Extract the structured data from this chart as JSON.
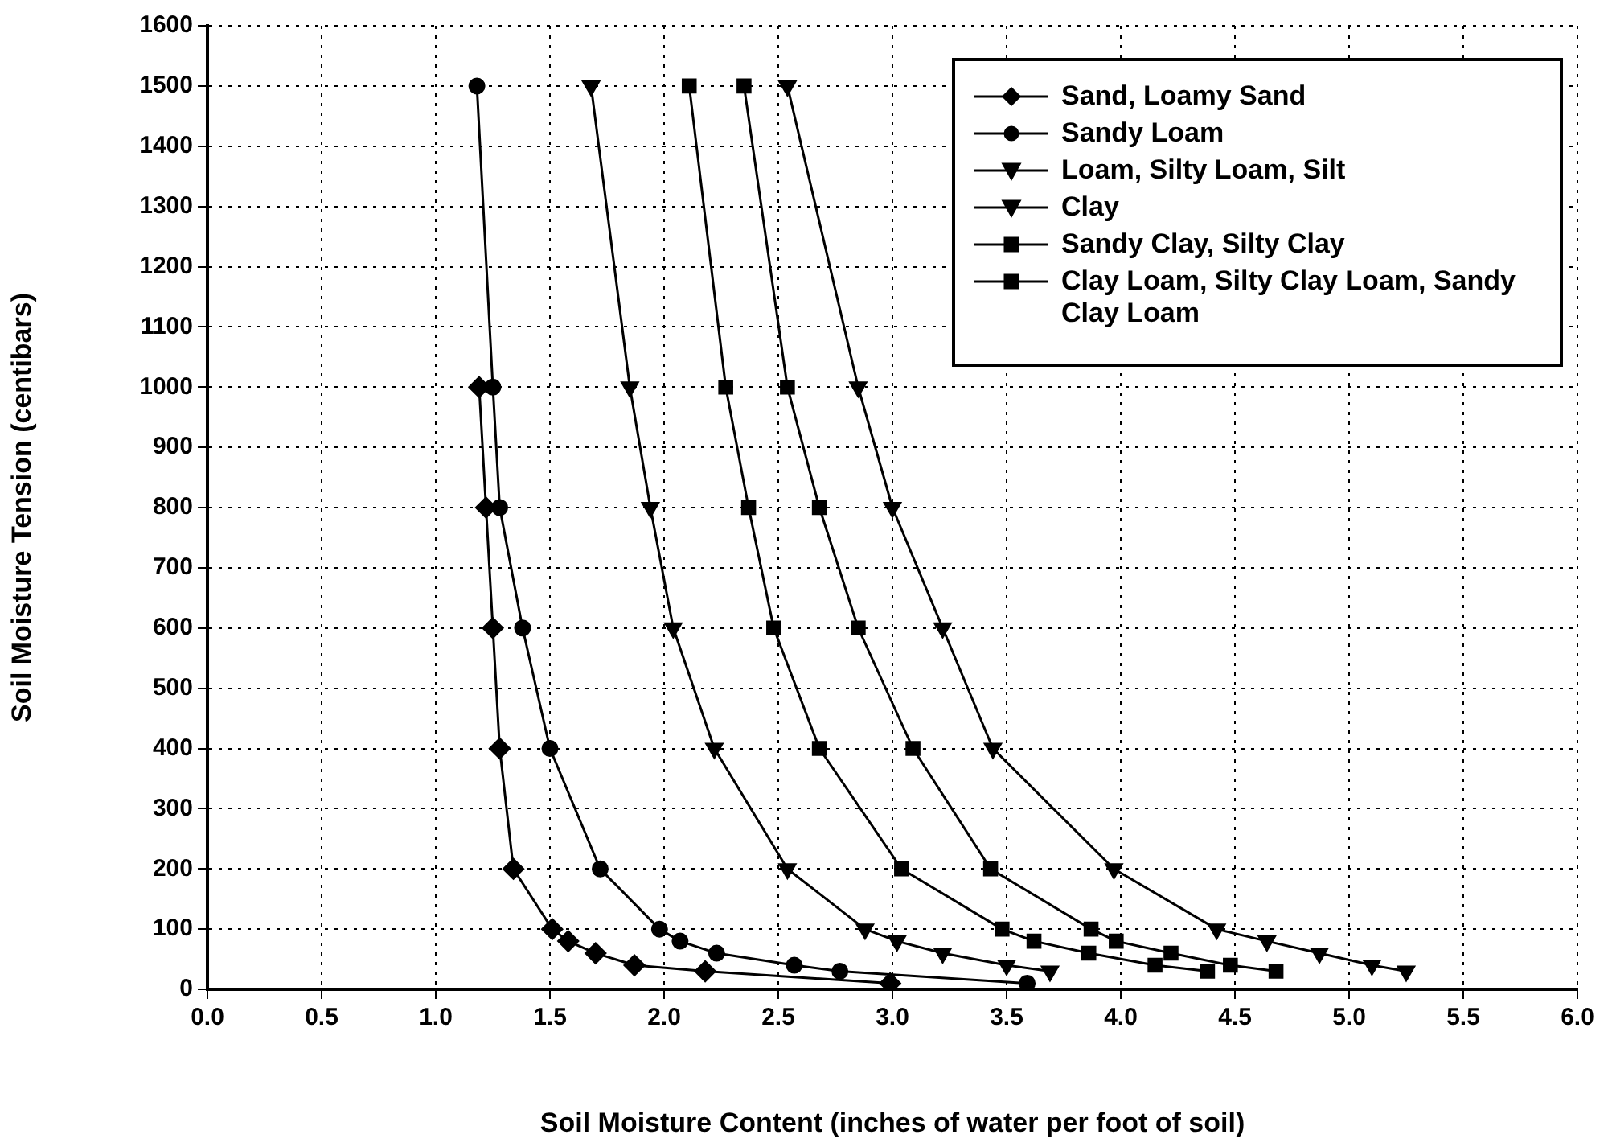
{
  "chart_data": {
    "type": "line",
    "xlabel": "Soil Moisture Content (inches of water per foot of soil)",
    "ylabel": "Soil Moisture Tension (centibars)",
    "xlim": [
      0,
      6
    ],
    "xticks": [
      {
        "value": 0,
        "label": "0.0"
      },
      {
        "value": 0.5,
        "label": "0.5"
      },
      {
        "value": 1,
        "label": "1.0"
      },
      {
        "value": 1.5,
        "label": "1.5"
      },
      {
        "value": 2,
        "label": "2.0"
      },
      {
        "value": 2.5,
        "label": "2.5"
      },
      {
        "value": 3,
        "label": "3.0"
      },
      {
        "value": 3.5,
        "label": "3.5"
      },
      {
        "value": 4,
        "label": "4.0"
      },
      {
        "value": 4.5,
        "label": "4.5"
      },
      {
        "value": 5,
        "label": "5.0"
      },
      {
        "value": 5.5,
        "label": "5.5"
      },
      {
        "value": 6,
        "label": "6.0"
      }
    ],
    "ylim": [
      0,
      1600
    ],
    "yticks": [
      0,
      100,
      200,
      300,
      400,
      500,
      600,
      700,
      800,
      900,
      1000,
      1100,
      1200,
      1300,
      1400,
      1500,
      1600
    ],
    "grid": true,
    "legend": "top right",
    "line_style": "solid",
    "series": [
      {
        "name": "Sand, Loamy Sand",
        "color": "#000000",
        "marker": "diamond",
        "x": [
          1.19,
          1.22,
          1.25,
          1.28,
          1.34,
          1.51,
          1.58,
          1.7,
          1.87,
          2.18,
          2.99
        ],
        "values": [
          1000,
          800,
          600,
          400,
          200,
          100,
          80,
          60,
          40,
          30,
          10
        ]
      },
      {
        "name": "Sandy Loam",
        "color": "#000000",
        "marker": "circle",
        "x": [
          1.18,
          1.25,
          1.28,
          1.38,
          1.5,
          1.72,
          1.98,
          2.07,
          2.23,
          2.57,
          2.77,
          3.59
        ],
        "values": [
          1500,
          1000,
          800,
          600,
          400,
          200,
          100,
          80,
          60,
          40,
          30,
          10
        ]
      },
      {
        "name": "Loam, Silty Loam, Silt",
        "color": "#000000",
        "marker": "triangle",
        "x": [
          1.68,
          1.85,
          1.94,
          2.04,
          2.22,
          2.54,
          2.88,
          3.02,
          3.22,
          3.5,
          3.69
        ],
        "values": [
          1500,
          1000,
          800,
          600,
          400,
          200,
          100,
          80,
          60,
          40,
          30
        ]
      },
      {
        "name": "Clay",
        "color": "#000000",
        "marker": "triangle",
        "x": [
          2.54,
          2.85,
          3.0,
          3.22,
          3.44,
          3.97,
          4.42,
          4.64,
          4.87,
          5.1,
          5.25
        ],
        "values": [
          1500,
          1000,
          800,
          600,
          400,
          200,
          100,
          80,
          60,
          40,
          30
        ]
      },
      {
        "name": "Sandy Clay, Silty Clay",
        "color": "#000000",
        "marker": "square",
        "x": [
          2.35,
          2.54,
          2.68,
          2.85,
          3.09,
          3.43,
          3.87,
          3.98,
          4.22,
          4.48,
          4.68
        ],
        "values": [
          1500,
          1000,
          800,
          600,
          400,
          200,
          100,
          80,
          60,
          40,
          30
        ]
      },
      {
        "name": "Clay Loam, Silty Clay Loam, Sandy Clay Loam",
        "color": "#000000",
        "marker": "square",
        "x": [
          2.11,
          2.27,
          2.37,
          2.48,
          2.68,
          3.04,
          3.48,
          3.62,
          3.86,
          4.15,
          4.38
        ],
        "values": [
          1500,
          1000,
          800,
          600,
          400,
          200,
          100,
          80,
          60,
          40,
          30
        ]
      }
    ]
  }
}
